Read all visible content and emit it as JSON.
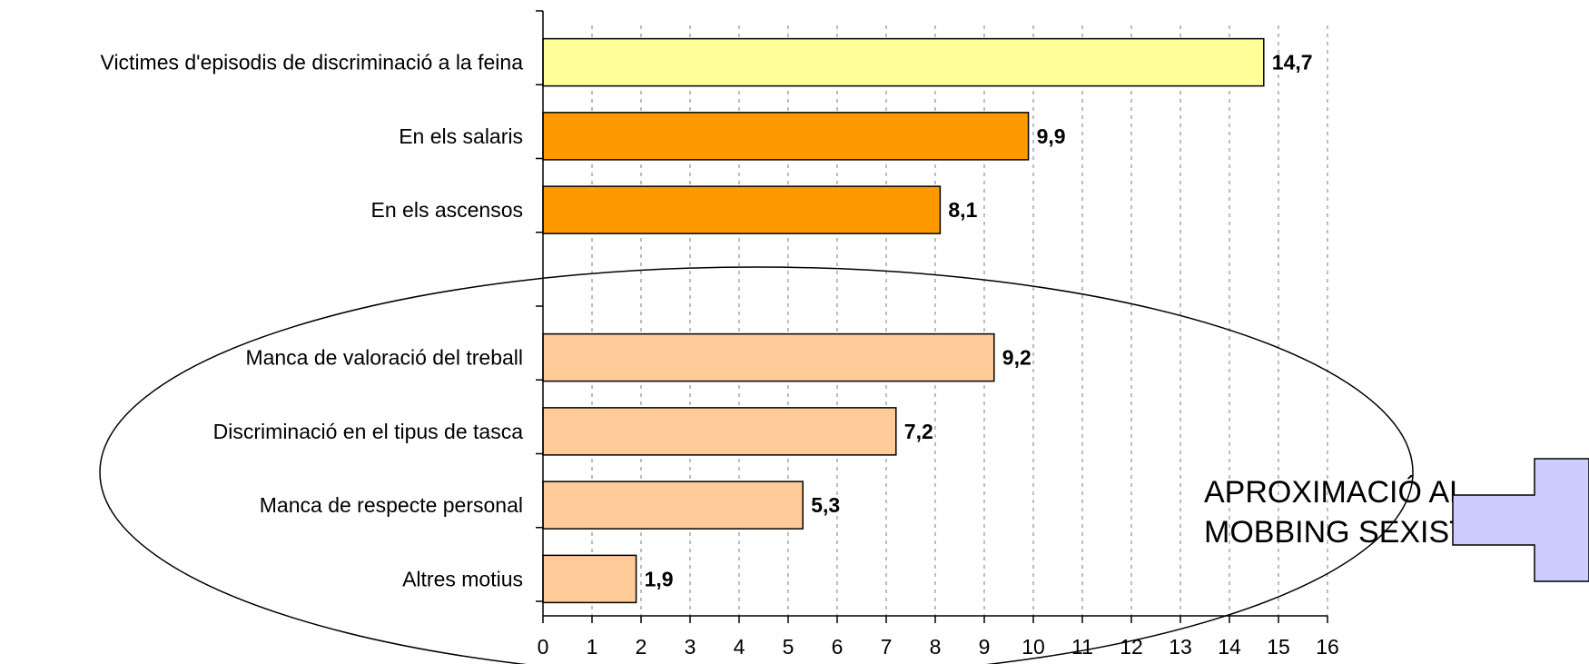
{
  "chart_data": {
    "type": "bar",
    "orientation": "horizontal",
    "categories": [
      "Victimes d'episodis de discriminació a la feina",
      "En els salaris",
      "En els ascensos",
      "",
      "Manca de valoració del treball",
      "Discriminació en el tipus de tasca",
      "Manca de respecte personal",
      "Altres motius"
    ],
    "values": [
      14.7,
      9.9,
      8.1,
      null,
      9.2,
      7.2,
      5.3,
      1.9
    ],
    "value_labels": [
      "14,7",
      "9,9",
      "8,1",
      "",
      "9,2",
      "7,2",
      "5,3",
      "1,9"
    ],
    "bar_colors": [
      "#ffff99",
      "#ff9900",
      "#ff9900",
      "",
      "#ffcc99",
      "#ffcc99",
      "#ffcc99",
      "#ffcc99"
    ],
    "xlim": [
      0,
      16
    ],
    "x_ticks": [
      "0",
      "1",
      "2",
      "3",
      "4",
      "5",
      "6",
      "7",
      "8",
      "9",
      "10",
      "11",
      "12",
      "13",
      "14",
      "15",
      "16"
    ],
    "grid": "vertical dotted",
    "title": "",
    "xlabel": "",
    "ylabel": ""
  },
  "annotation": {
    "lines": [
      "APROXIMACIÓ AL",
      "MOBBING SEXISTA"
    ],
    "arrow_color": "#ccccff",
    "shape": "ellipse around the last four bars"
  }
}
